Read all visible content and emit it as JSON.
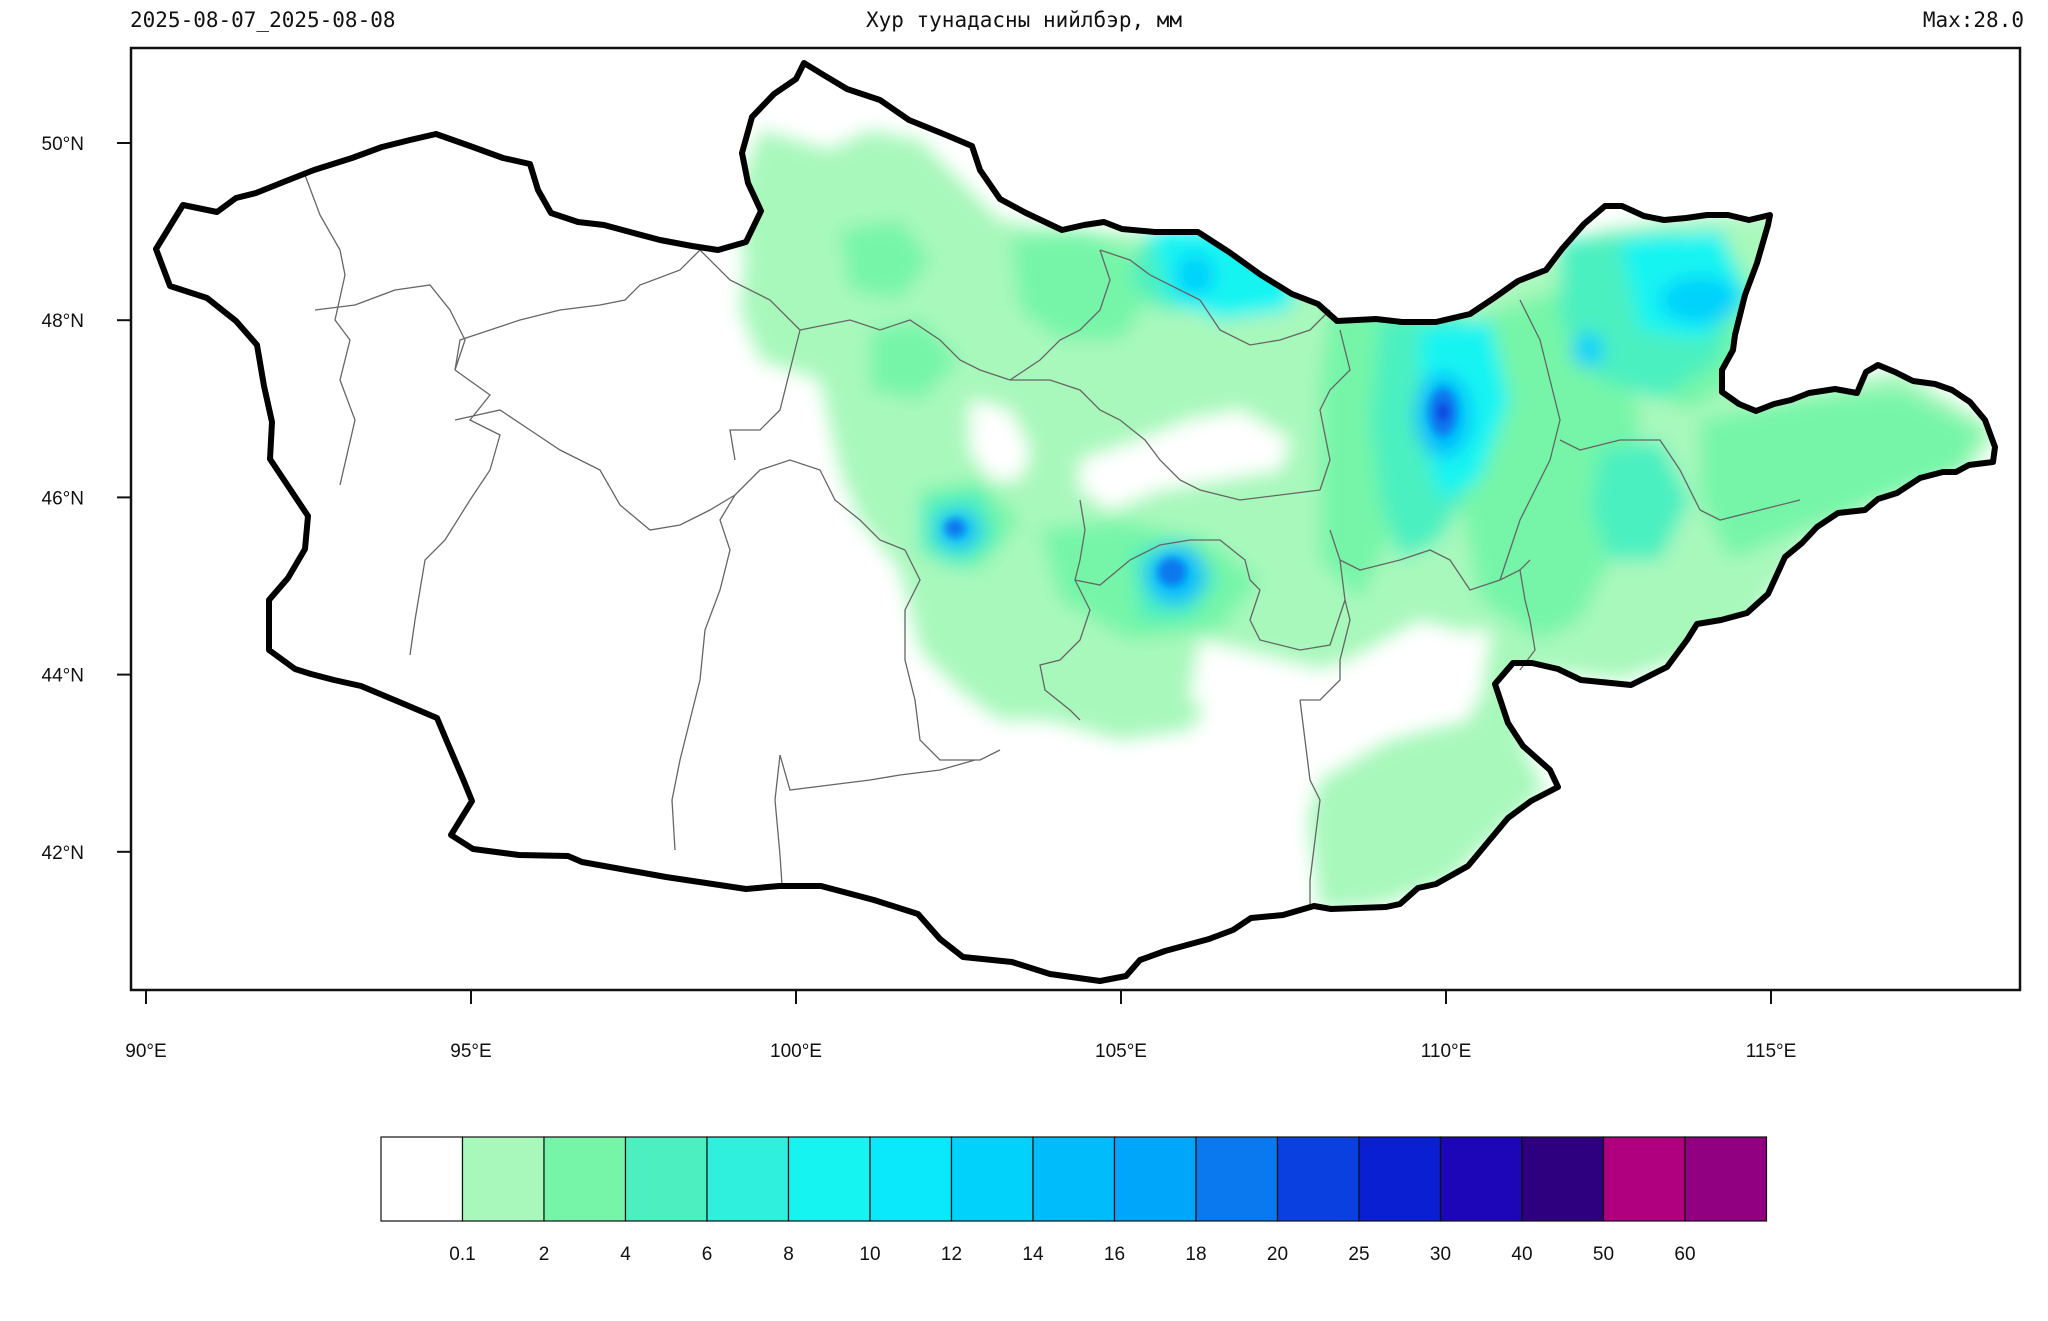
{
  "header": {
    "date_range": "2025-08-07_2025-08-08",
    "title": "Хур тунадасны нийлбэр, мм",
    "max_label": "Max:28.0"
  },
  "map": {
    "region": "Mongolia",
    "lon_range": [
      89.5,
      118.75
    ],
    "lat_range": [
      40.3,
      51.05
    ],
    "lon_ticks": [
      "90°E",
      "95°E",
      "100°E",
      "105°E",
      "110°E",
      "115°E"
    ],
    "lat_ticks": [
      "50°N",
      "48°N",
      "46°N",
      "44°N",
      "42°N"
    ],
    "max_value": 28.0,
    "max_location": {
      "lon": 109.8,
      "lat": 46.95
    }
  },
  "colorbar": {
    "colors": [
      "#ffffff",
      "#a8f8bc",
      "#76f5a8",
      "#4cf0c0",
      "#2ef0dc",
      "#16f4f2",
      "#0ae8fb",
      "#00d2fb",
      "#00bcfb",
      "#00a6fa",
      "#0a78ee",
      "#0a40e0",
      "#0a1ed2",
      "#1c06b8",
      "#2e0080",
      "#b00080",
      "#900080"
    ],
    "labels": [
      "0.1",
      "2",
      "4",
      "6",
      "8",
      "10",
      "12",
      "14",
      "16",
      "18",
      "20",
      "25",
      "30",
      "40",
      "50",
      "60"
    ]
  }
}
